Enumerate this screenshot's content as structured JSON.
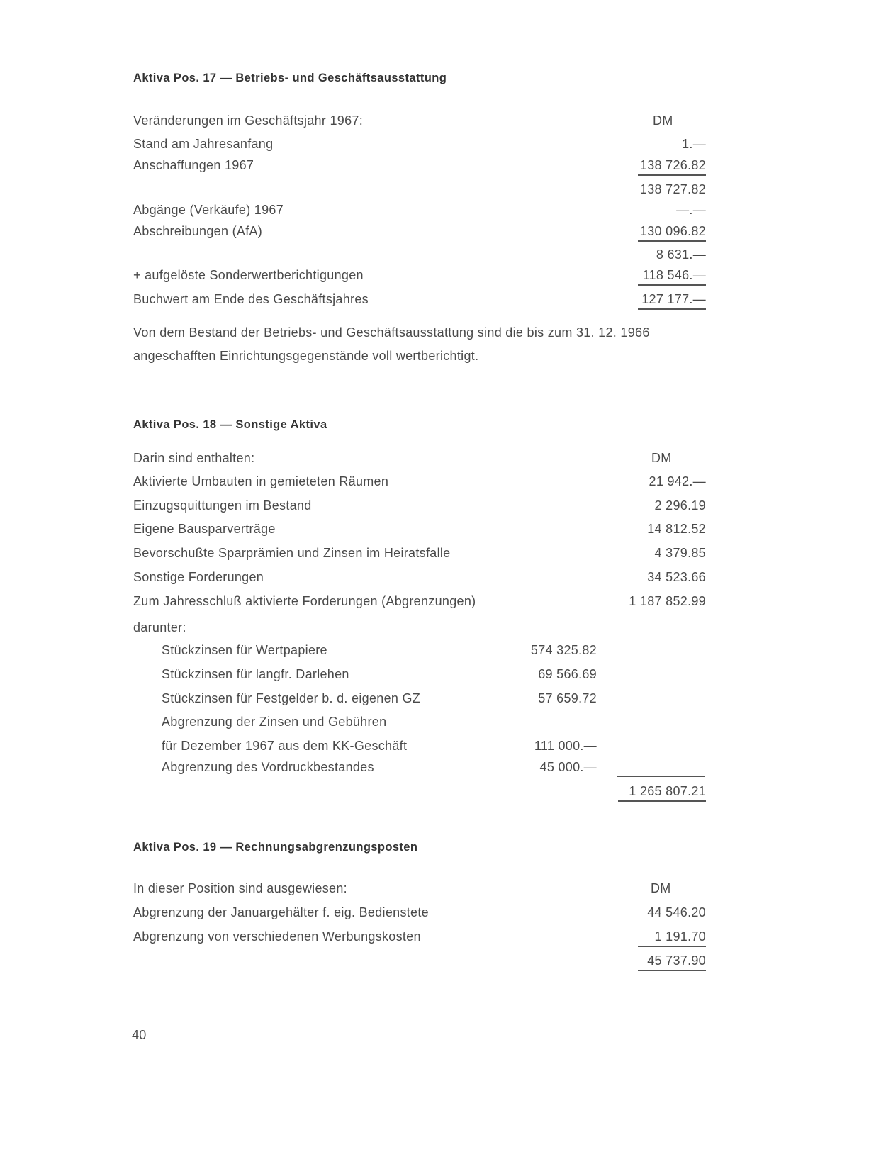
{
  "pos17": {
    "title": "Aktiva Pos. 17 — Betriebs- und Geschäftsausstattung",
    "intro": "Veränderungen im Geschäftsjahr 1967:",
    "currency": "DM",
    "rows": [
      {
        "label": "Stand am Jahresanfang",
        "amount": "1.—"
      },
      {
        "label": "Anschaffungen 1967",
        "amount": "138 726.82"
      },
      {
        "label": "",
        "amount": "138 727.82"
      },
      {
        "label": "Abgänge (Verkäufe) 1967",
        "amount": "—.—"
      },
      {
        "label": "Abschreibungen (AfA)",
        "amount": "130 096.82"
      },
      {
        "label": "",
        "amount": "8 631.—"
      },
      {
        "label": "+ aufgelöste Sonderwertberichtigungen",
        "amount": "118 546.—"
      },
      {
        "label": "Buchwert am Ende des Geschäftsjahres",
        "amount": "127 177.—"
      }
    ],
    "note": "Von dem Bestand der Betriebs- und Geschäftsausstattung sind die bis zum 31. 12. 1966 angeschafften Einrichtungsgegenstände voll wertberichtigt."
  },
  "pos18": {
    "title": "Aktiva Pos. 18 — Sonstige Aktiva",
    "intro": "Darin sind enthalten:",
    "currency": "DM",
    "rows": [
      {
        "label": "Aktivierte Umbauten in gemieteten Räumen",
        "amount": "21 942.—"
      },
      {
        "label": "Einzugsquittungen im Bestand",
        "amount": "2 296.19"
      },
      {
        "label": "Eigene Bausparverträge",
        "amount": "14 812.52"
      },
      {
        "label": "Bevorschußte Sparprämien und Zinsen im Heiratsfalle",
        "amount": "4 379.85"
      },
      {
        "label": "Sonstige Forderungen",
        "amount": "34 523.66"
      },
      {
        "label": "Zum Jahresschluß aktivierte Forderungen (Abgrenzungen)",
        "amount": "1 187 852.99"
      }
    ],
    "sub_intro": "darunter:",
    "sub_rows": [
      {
        "label": "Stückzinsen für Wertpapiere",
        "amount": "574 325.82"
      },
      {
        "label": "Stückzinsen für langfr. Darlehen",
        "amount": "69 566.69"
      },
      {
        "label": "Stückzinsen für Festgelder b. d. eigenen GZ",
        "amount": "57 659.72"
      },
      {
        "label": "Abgrenzung der Zinsen und Gebühren",
        "amount": ""
      },
      {
        "label": "für Dezember 1967 aus dem KK-Geschäft",
        "amount": "111 000.—"
      },
      {
        "label": "Abgrenzung des Vordruckbestandes",
        "amount": "45 000.—"
      }
    ],
    "total": "1 265 807.21"
  },
  "pos19": {
    "title": "Aktiva Pos. 19 — Rechnungsabgrenzungsposten",
    "intro": "In dieser Position sind ausgewiesen:",
    "currency": "DM",
    "rows": [
      {
        "label": "Abgrenzung der Januargehälter f. eig. Bedienstete",
        "amount": "44 546.20"
      },
      {
        "label": "Abgrenzung von verschiedenen Werbungskosten",
        "amount": "1 191.70"
      }
    ],
    "total": "45 737.90"
  },
  "page_number": "40"
}
